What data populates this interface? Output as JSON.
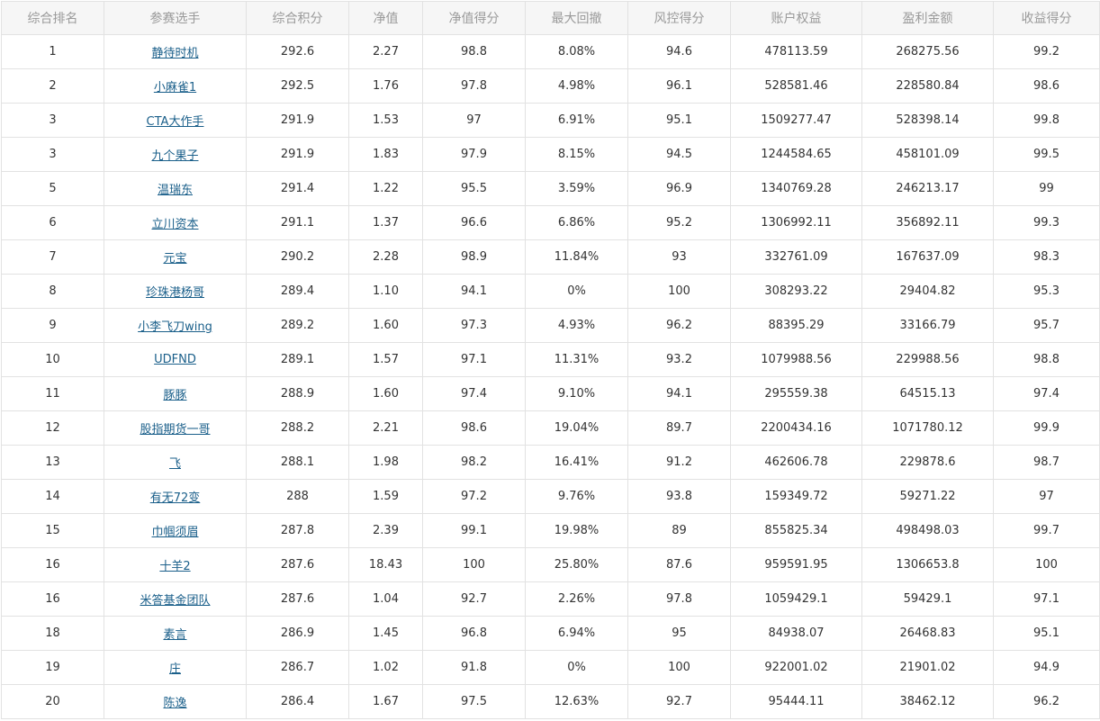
{
  "colors": {
    "link": "#1a5f8a",
    "header_bg": "#f6f6f6",
    "header_text": "#9a9a9a",
    "border": "#e2e2e2"
  },
  "table": {
    "headers": [
      "综合排名",
      "参赛选手",
      "综合积分",
      "净值",
      "净值得分",
      "最大回撤",
      "风控得分",
      "账户权益",
      "盈利金额",
      "收益得分"
    ],
    "rows": [
      [
        "1",
        "静待时机",
        "292.6",
        "2.27",
        "98.8",
        "8.08%",
        "94.6",
        "478113.59",
        "268275.56",
        "99.2"
      ],
      [
        "2",
        "小麻雀1",
        "292.5",
        "1.76",
        "97.8",
        "4.98%",
        "96.1",
        "528581.46",
        "228580.84",
        "98.6"
      ],
      [
        "3",
        "CTA大作手",
        "291.9",
        "1.53",
        "97",
        "6.91%",
        "95.1",
        "1509277.47",
        "528398.14",
        "99.8"
      ],
      [
        "3",
        "九个果子",
        "291.9",
        "1.83",
        "97.9",
        "8.15%",
        "94.5",
        "1244584.65",
        "458101.09",
        "99.5"
      ],
      [
        "5",
        "温瑞东",
        "291.4",
        "1.22",
        "95.5",
        "3.59%",
        "96.9",
        "1340769.28",
        "246213.17",
        "99"
      ],
      [
        "6",
        "立川资本",
        "291.1",
        "1.37",
        "96.6",
        "6.86%",
        "95.2",
        "1306992.11",
        "356892.11",
        "99.3"
      ],
      [
        "7",
        "元宝",
        "290.2",
        "2.28",
        "98.9",
        "11.84%",
        "93",
        "332761.09",
        "167637.09",
        "98.3"
      ],
      [
        "8",
        "珍珠港杨哥",
        "289.4",
        "1.10",
        "94.1",
        "0%",
        "100",
        "308293.22",
        "29404.82",
        "95.3"
      ],
      [
        "9",
        "小李飞刀wing",
        "289.2",
        "1.60",
        "97.3",
        "4.93%",
        "96.2",
        "88395.29",
        "33166.79",
        "95.7"
      ],
      [
        "10",
        "UDFND",
        "289.1",
        "1.57",
        "97.1",
        "11.31%",
        "93.2",
        "1079988.56",
        "229988.56",
        "98.8"
      ],
      [
        "11",
        "豚豚",
        "288.9",
        "1.60",
        "97.4",
        "9.10%",
        "94.1",
        "295559.38",
        "64515.13",
        "97.4"
      ],
      [
        "12",
        "股指期货一哥",
        "288.2",
        "2.21",
        "98.6",
        "19.04%",
        "89.7",
        "2200434.16",
        "1071780.12",
        "99.9"
      ],
      [
        "13",
        "飞",
        "288.1",
        "1.98",
        "98.2",
        "16.41%",
        "91.2",
        "462606.78",
        "229878.6",
        "98.7"
      ],
      [
        "14",
        "有无72变",
        "288",
        "1.59",
        "97.2",
        "9.76%",
        "93.8",
        "159349.72",
        "59271.22",
        "97"
      ],
      [
        "15",
        "巾帼须眉",
        "287.8",
        "2.39",
        "99.1",
        "19.98%",
        "89",
        "855825.34",
        "498498.03",
        "99.7"
      ],
      [
        "16",
        "十羊2",
        "287.6",
        "18.43",
        "100",
        "25.80%",
        "87.6",
        "959591.95",
        "1306653.8",
        "100"
      ],
      [
        "16",
        "米答基金团队",
        "287.6",
        "1.04",
        "92.7",
        "2.26%",
        "97.8",
        "1059429.1",
        "59429.1",
        "97.1"
      ],
      [
        "18",
        "素言",
        "286.9",
        "1.45",
        "96.8",
        "6.94%",
        "95",
        "84938.07",
        "26468.83",
        "95.1"
      ],
      [
        "19",
        "庄",
        "286.7",
        "1.02",
        "91.8",
        "0%",
        "100",
        "922001.02",
        "21901.02",
        "94.9"
      ],
      [
        "20",
        "陈逸",
        "286.4",
        "1.67",
        "97.5",
        "12.63%",
        "92.7",
        "95444.11",
        "38462.12",
        "96.2"
      ]
    ]
  }
}
